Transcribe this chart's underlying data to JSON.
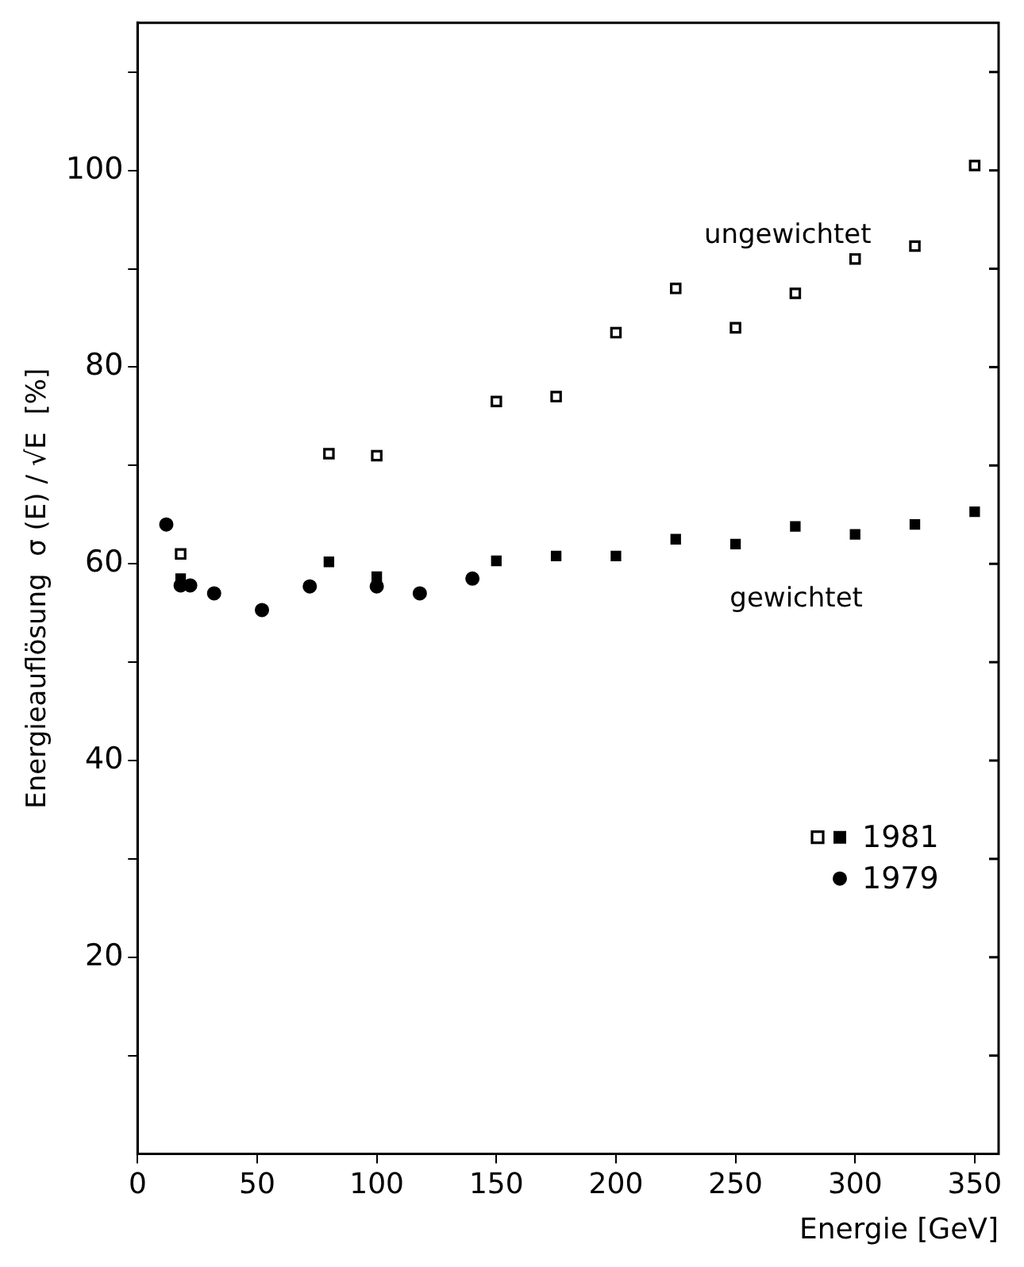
{
  "chart_data": {
    "type": "scatter",
    "xlabel": "Energie [GeV]",
    "ylabel": "Energieauflösung  σ (E) / √E  [%]",
    "xlim": [
      0,
      360
    ],
    "xticks": [
      0,
      50,
      100,
      150,
      200,
      250,
      300,
      350
    ],
    "ylim": [
      0,
      115
    ],
    "yticks": [
      {
        "value": 10,
        "label": null
      },
      20,
      {
        "value": 30,
        "label": null
      },
      40,
      {
        "value": 50,
        "label": null
      },
      60,
      {
        "value": 70,
        "label": null
      },
      80,
      {
        "value": 90,
        "label": null
      },
      100,
      {
        "value": 110,
        "label": null
      }
    ],
    "grid": false,
    "legend": "right",
    "series": [
      {
        "name": "1981",
        "color": "#000000",
        "marker": "square",
        "x": [
          18,
          80,
          100,
          150,
          175,
          200,
          225,
          250,
          275,
          300,
          325,
          350
        ],
        "values": [
          58.5,
          60.2,
          58.7,
          60.3,
          60.8,
          60.8,
          62.5,
          62,
          63.8,
          63,
          64,
          65.3
        ]
      },
      {
        "color": "#ffffff",
        "marker": "square",
        "x": [
          18,
          80,
          100,
          150,
          175,
          200,
          225,
          250,
          275,
          300,
          325,
          350
        ],
        "values": [
          61,
          71.2,
          71,
          76.5,
          77,
          83.5,
          88,
          84,
          87.5,
          91,
          92.3,
          100.5
        ]
      },
      {
        "name": "1979",
        "color": "#000000",
        "marker": "circle",
        "x": [
          12,
          18,
          22,
          32,
          52,
          72,
          100,
          118,
          140
        ],
        "values": [
          64,
          57.8,
          57.8,
          57,
          55.3,
          57.7,
          57.7,
          57,
          58.5
        ]
      }
    ],
    "annotations": [
      "ungewichtet",
      "gewichtet"
    ]
  }
}
